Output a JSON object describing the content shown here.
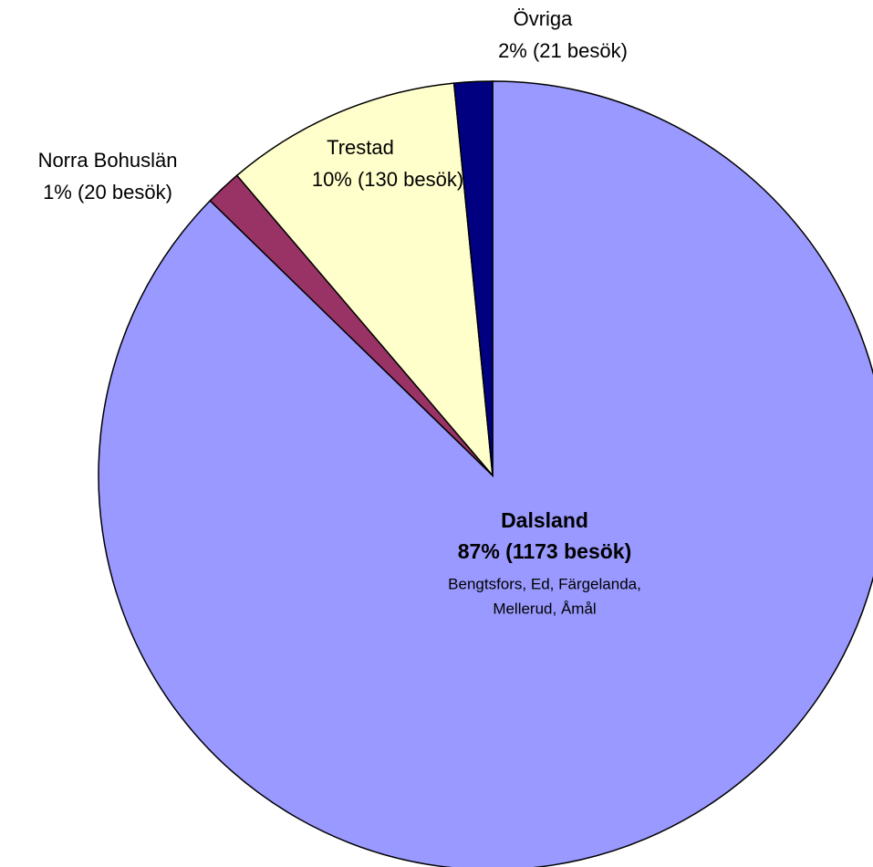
{
  "chart_data": {
    "type": "pie",
    "categories": [
      "Dalsland",
      "Norra Bohuslän",
      "Trestad",
      "Övriga"
    ],
    "values": [
      1173,
      20,
      130,
      21
    ],
    "value_labels": [
      "87% (1173 besök)",
      "1% (20 besök)",
      "10% (130 besök)",
      "2% (21 besök)"
    ],
    "colors": [
      "#9999ff",
      "#993366",
      "#ffffcc",
      "#000080"
    ],
    "annotations": [
      "Bengtsfors, Ed, Färgelanda,",
      "Mellerud, Åmål"
    ]
  }
}
